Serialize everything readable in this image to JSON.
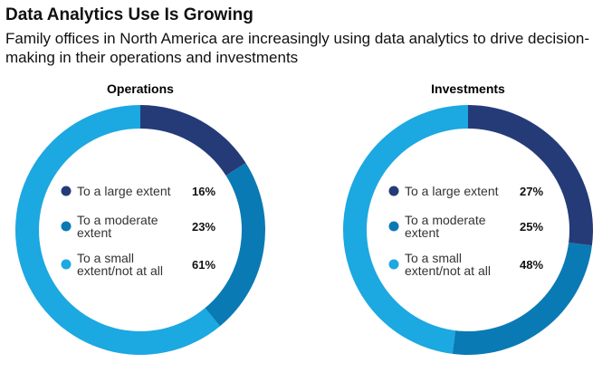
{
  "title": "Data Analytics Use Is Growing",
  "subtitle": "Family offices in North America are increasingly using data analytics to drive decision-making in their operations and investments",
  "chart_data": [
    {
      "type": "donut",
      "title": "Operations",
      "categories": [
        "To a large extent",
        "To a moderate extent",
        "To a small extent/not at all"
      ],
      "values": [
        16,
        23,
        61
      ],
      "value_labels": [
        "16%",
        "23%",
        "61%"
      ],
      "colors": [
        "#253b78",
        "#0a7ab5",
        "#1ca8e1"
      ]
    },
    {
      "type": "donut",
      "title": "Investments",
      "categories": [
        "To a large extent",
        "To a moderate extent",
        "To a small extent/not at all"
      ],
      "values": [
        27,
        25,
        48
      ],
      "value_labels": [
        "27%",
        "25%",
        "48%"
      ],
      "colors": [
        "#253b78",
        "#0a7ab5",
        "#1ca8e1"
      ]
    }
  ]
}
